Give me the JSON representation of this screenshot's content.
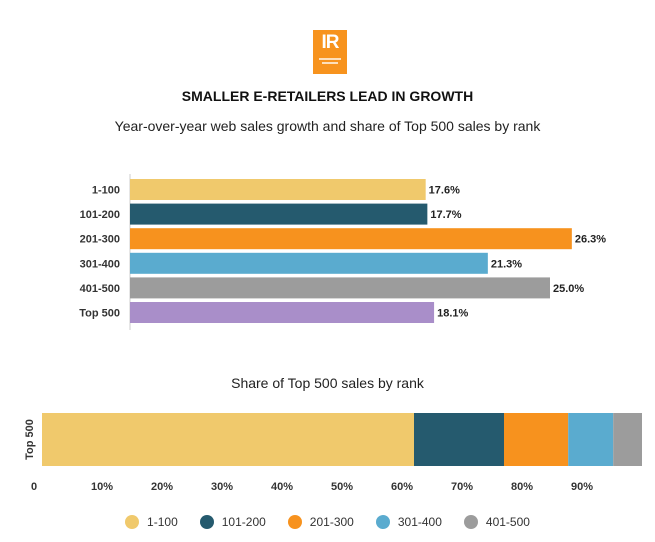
{
  "logo": {
    "text": "IR",
    "label": "Internet Retailer logo"
  },
  "header": {
    "title": "SMALLER E-RETAILERS LEAD IN GROWTH",
    "subtitle": "Year-over-year web sales growth and share of Top 500 sales by rank"
  },
  "chart_data": [
    {
      "type": "bar",
      "orientation": "horizontal",
      "title": "Year-over-year web sales growth and share of Top 500 sales by rank",
      "categories": [
        "1-100",
        "101-200",
        "201-300",
        "301-400",
        "401-500",
        "Top 500"
      ],
      "values": [
        17.6,
        17.7,
        26.3,
        21.3,
        25.0,
        18.1
      ],
      "labels": [
        "17.6%",
        "17.7%",
        "26.3%",
        "21.3%",
        "25.0%",
        "18.1%"
      ],
      "colors": [
        "#f0c96c",
        "#255a6e",
        "#f7921e",
        "#5aabcf",
        "#9c9c9c",
        "#a98ec9"
      ],
      "xlim": [
        0,
        30
      ],
      "xlabel": "",
      "ylabel": ""
    },
    {
      "type": "bar",
      "orientation": "horizontal",
      "stacked": true,
      "title": "Share of Top 500 sales by rank",
      "categories": [
        "Top 500"
      ],
      "series": [
        {
          "name": "1-100",
          "values": [
            62.0
          ],
          "color": "#f0c96c"
        },
        {
          "name": "101-200",
          "values": [
            15.0
          ],
          "color": "#255a6e"
        },
        {
          "name": "201-300",
          "values": [
            10.7
          ],
          "color": "#f7921e"
        },
        {
          "name": "301-400",
          "values": [
            7.5
          ],
          "color": "#5aabcf"
        },
        {
          "name": "401-500",
          "values": [
            4.8
          ],
          "color": "#9c9c9c"
        }
      ],
      "xlim": [
        0,
        100
      ],
      "xticks": [
        "0",
        "10%",
        "20%",
        "30%",
        "40%",
        "50%",
        "60%",
        "70%",
        "80%",
        "90%"
      ],
      "ylabel": "Top 500",
      "legend_position": "bottom"
    }
  ]
}
